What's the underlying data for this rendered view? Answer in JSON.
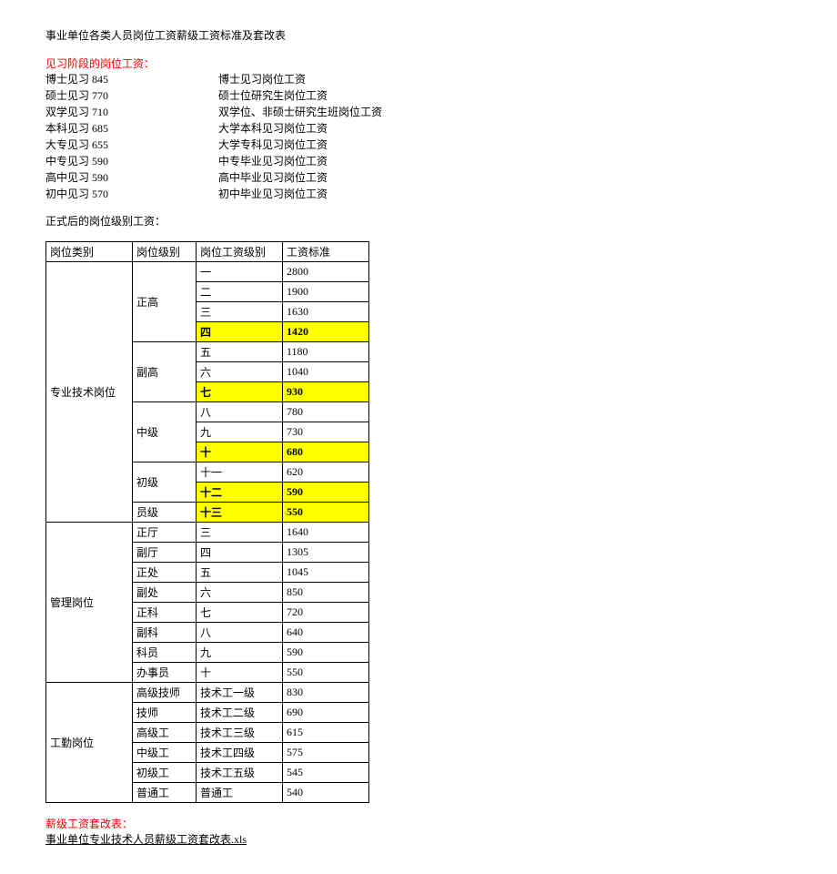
{
  "title": "事业单位各类人员岗位工资薪级工资标准及套改表",
  "section1_header": "见习阶段的岗位工资：",
  "intern_rows": [
    {
      "left": "博士见习 845",
      "right": "博士见习岗位工资"
    },
    {
      "left": "硕士见习 770",
      "right": "硕士位研究生岗位工资"
    },
    {
      "left": "双学见习 710",
      "right": "双学位、非硕士研究生班岗位工资"
    },
    {
      "left": "本科见习 685",
      "right": "大学本科见习岗位工资"
    },
    {
      "left": "大专见习 655",
      "right": "大学专科见习岗位工资"
    },
    {
      "left": "中专见习 590",
      "right": "中专毕业见习岗位工资"
    },
    {
      "left": "高中见习 590",
      "right": "高中毕业见习岗位工资"
    },
    {
      "left": "初中见习 570",
      "right": "初中毕业见习岗位工资"
    }
  ],
  "section2_header": "正式后的岗位级别工资：",
  "table": {
    "headers": [
      "岗位类别",
      "岗位级别",
      "岗位工资级别",
      "工资标准"
    ],
    "groups": [
      {
        "category": "专业技术岗位",
        "subs": [
          {
            "level": "正高",
            "span": 4,
            "rows": [
              {
                "grade": "一",
                "salary": "2800",
                "hl": false
              },
              {
                "grade": "二",
                "salary": "1900",
                "hl": false
              },
              {
                "grade": "三",
                "salary": "1630",
                "hl": false
              },
              {
                "grade": "四",
                "salary": "1420",
                "hl": true
              }
            ]
          },
          {
            "level": "副高",
            "span": 3,
            "rows": [
              {
                "grade": "五",
                "salary": "1180",
                "hl": false
              },
              {
                "grade": "六",
                "salary": "1040",
                "hl": false
              },
              {
                "grade": "七",
                "salary": "930",
                "hl": true
              }
            ]
          },
          {
            "level": "中级",
            "span": 3,
            "rows": [
              {
                "grade": "八",
                "salary": "780",
                "hl": false
              },
              {
                "grade": "九",
                "salary": "730",
                "hl": false
              },
              {
                "grade": "十",
                "salary": "680",
                "hl": true
              }
            ]
          },
          {
            "level": "初级",
            "span": 2,
            "rows": [
              {
                "grade": "十一",
                "salary": "620",
                "hl": false
              },
              {
                "grade": "十二",
                "salary": "590",
                "hl": true
              }
            ]
          },
          {
            "level": "员级",
            "span": 1,
            "rows": [
              {
                "grade": "十三",
                "salary": "550",
                "hl": true
              }
            ]
          }
        ]
      },
      {
        "category": "管理岗位",
        "subs": [
          {
            "level": "正厅",
            "span": 1,
            "rows": [
              {
                "grade": "三",
                "salary": "1640",
                "hl": false
              }
            ]
          },
          {
            "level": "副厅",
            "span": 1,
            "rows": [
              {
                "grade": "四",
                "salary": "1305",
                "hl": false
              }
            ]
          },
          {
            "level": "正处",
            "span": 1,
            "rows": [
              {
                "grade": "五",
                "salary": "1045",
                "hl": false
              }
            ]
          },
          {
            "level": "副处",
            "span": 1,
            "rows": [
              {
                "grade": "六",
                "salary": "850",
                "hl": false
              }
            ]
          },
          {
            "level": "正科",
            "span": 1,
            "rows": [
              {
                "grade": "七",
                "salary": "720",
                "hl": false
              }
            ]
          },
          {
            "level": "副科",
            "span": 1,
            "rows": [
              {
                "grade": "八",
                "salary": "640",
                "hl": false
              }
            ]
          },
          {
            "level": "科员",
            "span": 1,
            "rows": [
              {
                "grade": "九",
                "salary": "590",
                "hl": false
              }
            ]
          },
          {
            "level": "办事员",
            "span": 1,
            "rows": [
              {
                "grade": "十",
                "salary": "550",
                "hl": false
              }
            ]
          }
        ]
      },
      {
        "category": "工勤岗位",
        "subs": [
          {
            "level": "高级技师",
            "span": 1,
            "rows": [
              {
                "grade": "技术工一级",
                "salary": "830",
                "hl": false
              }
            ]
          },
          {
            "level": "技师",
            "span": 1,
            "rows": [
              {
                "grade": "技术工二级",
                "salary": "690",
                "hl": false
              }
            ]
          },
          {
            "level": "高级工",
            "span": 1,
            "rows": [
              {
                "grade": "技术工三级",
                "salary": "615",
                "hl": false
              }
            ]
          },
          {
            "level": "中级工",
            "span": 1,
            "rows": [
              {
                "grade": "技术工四级",
                "salary": "575",
                "hl": false
              }
            ]
          },
          {
            "level": "初级工",
            "span": 1,
            "rows": [
              {
                "grade": "技术工五级",
                "salary": "545",
                "hl": false
              }
            ]
          },
          {
            "level": "普通工",
            "span": 1,
            "rows": [
              {
                "grade": "普通工",
                "salary": "540",
                "hl": false
              }
            ]
          }
        ]
      }
    ]
  },
  "footer_header": "薪级工资套改表：",
  "footer_link": "事业单位专业技术人员薪级工资套改表.xls"
}
